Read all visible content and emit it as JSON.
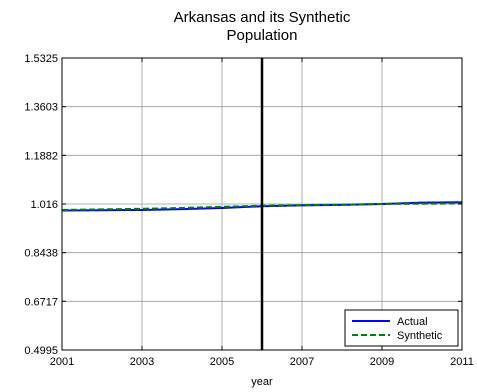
{
  "chart_data": {
    "type": "line",
    "title": "Arkansas and its Synthetic\nPopulation",
    "xlabel": "year",
    "ylabel": "",
    "xlim": [
      2001,
      2011
    ],
    "ylim": [
      0.4995,
      1.5325
    ],
    "xticks": [
      2001,
      2003,
      2005,
      2007,
      2009,
      2011
    ],
    "yticks": [
      0.4995,
      0.6717,
      0.8438,
      1.016,
      1.1882,
      1.3603,
      1.5325
    ],
    "ytick_labels": [
      "0.4995",
      "0.6717",
      "0.8438",
      "1.016",
      "1.1882",
      "1.3603",
      "1.5325"
    ],
    "grid": true,
    "treatment_year": 2006,
    "legend_position": "bottom-right",
    "series": [
      {
        "name": "Actual",
        "color": "#0000ff",
        "style": "solid",
        "x": [
          2001,
          2002,
          2003,
          2004,
          2005,
          2006,
          2007,
          2008,
          2009,
          2010,
          2011
        ],
        "y": [
          0.993,
          0.994,
          0.995,
          0.998,
          1.002,
          1.008,
          1.011,
          1.013,
          1.016,
          1.021,
          1.022
        ]
      },
      {
        "name": "Synthetic",
        "color": "#008000",
        "style": "dashed",
        "x": [
          2001,
          2002,
          2003,
          2004,
          2005,
          2006,
          2007,
          2008,
          2009,
          2010,
          2011
        ],
        "y": [
          0.995,
          0.997,
          0.999,
          1.002,
          1.006,
          1.01,
          1.012,
          1.014,
          1.016,
          1.017,
          1.018
        ]
      }
    ]
  }
}
